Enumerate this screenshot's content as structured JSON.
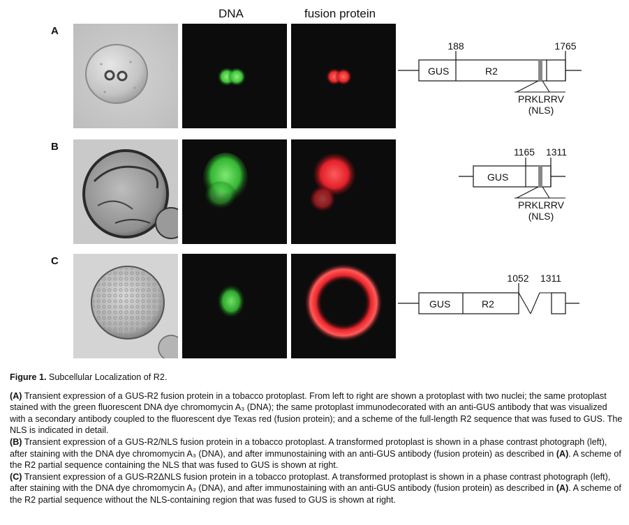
{
  "columns": {
    "dna": "DNA",
    "fusion": "fusion protein"
  },
  "rows": [
    {
      "letter": "A",
      "scheme": {
        "gus": "GUS",
        "r2": "R2",
        "n1": "188",
        "n2": "1765",
        "seq": "PRKLRRV",
        "nls": "(NLS)"
      }
    },
    {
      "letter": "B",
      "scheme": {
        "gus": "GUS",
        "n1": "1165",
        "n2": "1311",
        "seq": "PRKLRRV",
        "nls": "(NLS)"
      }
    },
    {
      "letter": "C",
      "scheme": {
        "gus": "GUS",
        "r2": "R2",
        "n1": "1052",
        "n2": "1311"
      }
    }
  ],
  "caption": {
    "title_bold": "Figure 1.",
    "title_text": " Subcellular Localization of R2.",
    "paras": [
      {
        "lbl": "(A)",
        "text": " Transient expression of a GUS-R2 fusion protein in a tobacco protoplast. From left to right are shown a protoplast with two nuclei; the same protoplast stained with the green fluorescent DNA dye chromomycin A₃ (DNA); the same protoplast immunodecorated with an anti-GUS antibody that was visualized with a secondary antibody coupled to the fluorescent dye Texas red (fusion protein); and a scheme of the full-length R2 sequence that was fused to GUS. The NLS is indicated in detail."
      },
      {
        "lbl": "(B)",
        "text": " Transient expression of a GUS-R2/NLS fusion protein in a tobacco protoplast. A transformed protoplast is shown in a phase contrast photograph (left), after staining with the DNA dye chromomycin A₃ (DNA), and after immunostaining with an anti-GUS antibody (fusion protein) as described in ",
        "ref": "(A)",
        "tail": ". A scheme of the R2 partial sequence containing the NLS that was fused to GUS is shown at right."
      },
      {
        "lbl": "(C)",
        "text": " Transient expression of a GUS-R2ΔNLS fusion protein in a tobacco protoplast. A transformed protoplast is shown in a phase contrast photograph (left), after staining with the DNA dye chromomycin A₃ (DNA), and after immunostaining with an anti-GUS antibody (fusion protein) as described in ",
        "ref": "(A)",
        "tail": ". A scheme of the R2 partial sequence without the NLS-containing region that was fused to GUS is shown at right."
      }
    ]
  },
  "colors": {
    "green": "#3fc43a",
    "red": "#e8262c",
    "dark": "#0c0c0c",
    "gray": "#c8c8c8"
  }
}
